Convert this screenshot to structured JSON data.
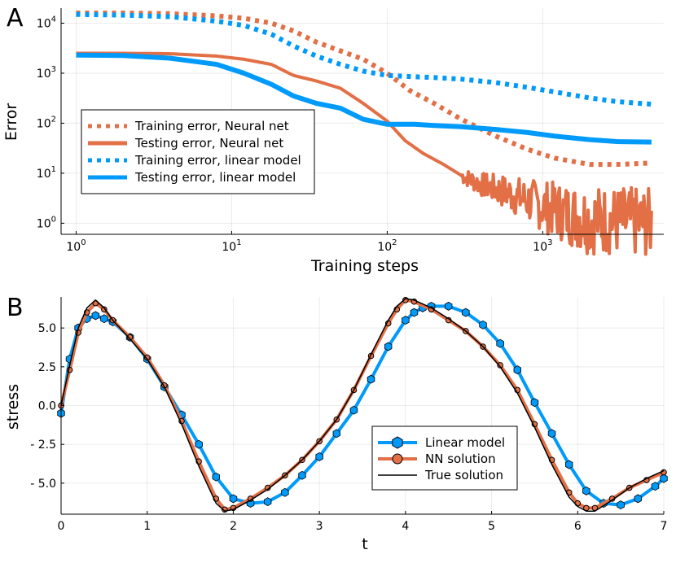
{
  "colors": {
    "neural_net": "#e26f46",
    "linear_model": "#009afa",
    "true_solution": "#000000"
  },
  "chart_data": [
    {
      "panel": "A",
      "type": "line",
      "xscale": "log",
      "yscale": "log",
      "xlabel": "Training steps",
      "ylabel": "Error",
      "xlim": [
        0.8,
        6000
      ],
      "ylim": [
        0.6,
        20000
      ],
      "x_ticks": [
        {
          "base": "10",
          "exp": "0"
        },
        {
          "base": "10",
          "exp": "1"
        },
        {
          "base": "10",
          "exp": "2"
        },
        {
          "base": "10",
          "exp": "3"
        }
      ],
      "y_ticks": [
        {
          "base": "10",
          "exp": "0"
        },
        {
          "base": "10",
          "exp": "1"
        },
        {
          "base": "10",
          "exp": "2"
        },
        {
          "base": "10",
          "exp": "3"
        },
        {
          "base": "10",
          "exp": "4"
        }
      ],
      "legend_position": "center-left",
      "series": [
        {
          "name": "Training error, Neural net",
          "style": "dotted",
          "color_key": "neural_net",
          "x": [
            1,
            2,
            4,
            8,
            12,
            18,
            25,
            35,
            50,
            70,
            100,
            140,
            200,
            300,
            500,
            800,
            1200,
            2000,
            3000,
            5000
          ],
          "y": [
            16000,
            16000,
            15500,
            14000,
            12500,
            10000,
            7000,
            4200,
            2800,
            1900,
            1000,
            450,
            250,
            120,
            55,
            30,
            20,
            15,
            15,
            16
          ]
        },
        {
          "name": "Testing error, Neural net",
          "style": "solid",
          "color_key": "neural_net",
          "noise_after_x": 300,
          "x": [
            1,
            2,
            4,
            8,
            12,
            18,
            25,
            35,
            50,
            70,
            100,
            130,
            170,
            230,
            300,
            400,
            600,
            1000,
            1500,
            2000,
            3000,
            5000
          ],
          "y": [
            2500,
            2500,
            2450,
            2200,
            1900,
            1500,
            900,
            700,
            500,
            250,
            110,
            45,
            25,
            15,
            9,
            6,
            4,
            2.2,
            1.5,
            1.2,
            1.1,
            1.0
          ]
        },
        {
          "name": "Training error, linear model",
          "style": "dotted",
          "color_key": "linear_model",
          "x": [
            1,
            2,
            4,
            8,
            12,
            18,
            25,
            35,
            50,
            70,
            100,
            150,
            200,
            300,
            500,
            800,
            1200,
            2000,
            3000,
            5000
          ],
          "y": [
            15000,
            14500,
            13500,
            11000,
            9000,
            6000,
            3500,
            2200,
            1500,
            1100,
            900,
            850,
            820,
            760,
            650,
            520,
            420,
            320,
            270,
            240
          ]
        },
        {
          "name": "Testing error, linear model",
          "style": "solid",
          "color_key": "linear_model",
          "x": [
            1,
            2,
            4,
            8,
            12,
            18,
            25,
            35,
            50,
            70,
            100,
            150,
            200,
            300,
            500,
            800,
            1200,
            2000,
            3000,
            5000
          ],
          "y": [
            2300,
            2250,
            2000,
            1500,
            1000,
            600,
            350,
            250,
            200,
            120,
            95,
            95,
            90,
            85,
            75,
            65,
            55,
            47,
            43,
            42
          ]
        }
      ]
    },
    {
      "panel": "B",
      "type": "line",
      "xlabel": "t",
      "ylabel": "stress",
      "xlim": [
        0,
        7
      ],
      "ylim": [
        -7.0,
        7.0
      ],
      "x_ticks": [
        "0",
        "1",
        "2",
        "3",
        "4",
        "5",
        "6",
        "7"
      ],
      "x_tick_values": [
        0,
        1,
        2,
        3,
        4,
        5,
        6,
        7
      ],
      "y_ticks": [
        "5.0",
        "2.5",
        "0.0",
        "- 2.5",
        "- 5.0"
      ],
      "y_tick_values": [
        5,
        2.5,
        0,
        -2.5,
        -5
      ],
      "legend_position": "bottom-right",
      "series": [
        {
          "name": "Linear model",
          "marker": "hexagon",
          "color_key": "linear_model",
          "x": [
            0,
            0.1,
            0.2,
            0.3,
            0.4,
            0.5,
            0.6,
            0.8,
            1.0,
            1.2,
            1.4,
            1.6,
            1.8,
            2.0,
            2.2,
            2.4,
            2.6,
            2.8,
            3.0,
            3.2,
            3.4,
            3.6,
            3.8,
            4.0,
            4.1,
            4.2,
            4.3,
            4.5,
            4.7,
            4.9,
            5.1,
            5.3,
            5.5,
            5.7,
            5.9,
            6.1,
            6.3,
            6.5,
            6.7,
            6.9,
            7.0
          ],
          "y": [
            -0.5,
            3.0,
            5.0,
            5.6,
            5.8,
            5.6,
            5.4,
            4.4,
            3.0,
            1.2,
            -0.6,
            -2.5,
            -4.6,
            -6.0,
            -6.3,
            -6.2,
            -5.6,
            -4.5,
            -3.3,
            -1.8,
            -0.3,
            1.7,
            3.8,
            5.5,
            6.0,
            6.3,
            6.4,
            6.4,
            6.0,
            5.2,
            4.0,
            2.3,
            0.2,
            -1.8,
            -3.8,
            -5.5,
            -6.3,
            -6.4,
            -6.0,
            -5.2,
            -4.7
          ]
        },
        {
          "name": "NN solution",
          "marker": "circle",
          "color_key": "neural_net",
          "x": [
            0,
            0.1,
            0.2,
            0.3,
            0.4,
            0.5,
            0.6,
            0.8,
            1.0,
            1.2,
            1.4,
            1.6,
            1.8,
            1.9,
            2.0,
            2.2,
            2.4,
            2.6,
            2.8,
            3.0,
            3.2,
            3.4,
            3.6,
            3.8,
            3.9,
            4.0,
            4.1,
            4.3,
            4.5,
            4.7,
            4.9,
            5.1,
            5.3,
            5.5,
            5.7,
            5.9,
            6.0,
            6.1,
            6.2,
            6.4,
            6.6,
            6.8,
            7.0
          ],
          "y": [
            0.0,
            2.3,
            4.7,
            6.0,
            6.6,
            6.2,
            5.5,
            4.4,
            3.1,
            1.3,
            -1.0,
            -3.6,
            -6.0,
            -6.7,
            -6.6,
            -6.0,
            -5.3,
            -4.5,
            -3.5,
            -2.3,
            -0.9,
            1.0,
            3.2,
            5.3,
            6.2,
            6.8,
            6.7,
            6.2,
            5.5,
            4.8,
            3.8,
            2.6,
            1.0,
            -1.2,
            -3.5,
            -5.6,
            -6.3,
            -6.6,
            -6.6,
            -6.0,
            -5.3,
            -4.8,
            -4.3
          ]
        },
        {
          "name": "True solution",
          "marker": "none",
          "color_key": "true_solution",
          "x": [
            0,
            0.1,
            0.2,
            0.3,
            0.4,
            0.5,
            0.6,
            0.8,
            1.0,
            1.2,
            1.4,
            1.6,
            1.8,
            1.9,
            2.0,
            2.2,
            2.4,
            2.6,
            2.8,
            3.0,
            3.2,
            3.4,
            3.6,
            3.8,
            3.9,
            4.0,
            4.1,
            4.3,
            4.5,
            4.7,
            4.9,
            5.1,
            5.3,
            5.5,
            5.7,
            5.9,
            6.0,
            6.1,
            6.2,
            6.4,
            6.6,
            6.8,
            7.0
          ],
          "y": [
            0.0,
            2.6,
            5.0,
            6.3,
            6.8,
            6.3,
            5.5,
            4.3,
            3.0,
            1.2,
            -1.2,
            -3.9,
            -6.3,
            -6.8,
            -6.7,
            -6.1,
            -5.4,
            -4.5,
            -3.5,
            -2.3,
            -0.9,
            1.0,
            3.3,
            5.5,
            6.4,
            6.9,
            6.8,
            6.3,
            5.6,
            4.8,
            3.8,
            2.5,
            0.8,
            -1.4,
            -3.8,
            -5.9,
            -6.5,
            -6.8,
            -6.8,
            -6.1,
            -5.3,
            -4.7,
            -4.2
          ]
        }
      ]
    }
  ]
}
